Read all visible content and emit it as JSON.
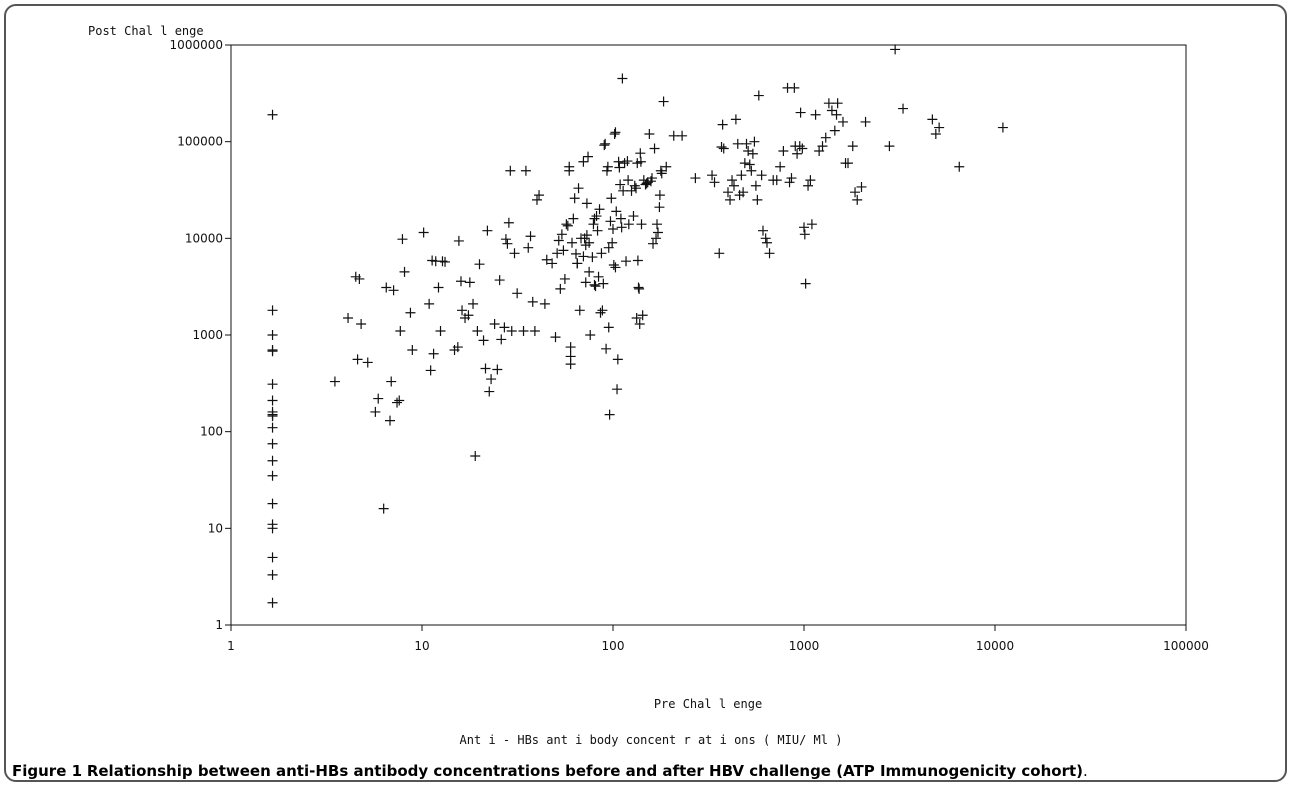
{
  "caption": {
    "label": "Figure 1",
    "text": "Relationship between anti-HBs antibody concentrations before and after HBV challenge (ATP Immunogenicity cohort).",
    "text_display": "Relationship between anti-HBs antibody concentrations before and after HBV challenge (ATP Immunogenicity cohort)"
  },
  "chart_data": {
    "type": "scatter",
    "title": "",
    "ylabel": "Post Challenge",
    "ylabel_display": "Post Chal l enge",
    "xlabel": "Pre Challenge",
    "xlabel_display": "Pre Chal l enge",
    "footnote": "Anti-HBs antibody concentrations (MIU/Ml)",
    "footnote_display": "Ant i - HBs ant i body concent r at i ons ( MIU/ Ml )",
    "x_scale": "log",
    "y_scale": "log",
    "xlim": [
      1,
      100000
    ],
    "ylim": [
      1,
      1000000
    ],
    "x_ticks": [
      "1",
      "10",
      "100",
      "1000",
      "10000",
      "100000"
    ],
    "y_ticks": [
      "1",
      "10",
      "100",
      "1000",
      "10000",
      "100000",
      "1000000"
    ],
    "marker": "plus",
    "grid": false,
    "legend": "none",
    "points": [
      [
        1.65,
        190000
      ],
      [
        1.65,
        1800
      ],
      [
        1.65,
        1000
      ],
      [
        1.65,
        700
      ],
      [
        1.65,
        680
      ],
      [
        1.65,
        310
      ],
      [
        1.65,
        210
      ],
      [
        1.65,
        160
      ],
      [
        1.65,
        150
      ],
      [
        1.65,
        145
      ],
      [
        1.65,
        110
      ],
      [
        1.65,
        75
      ],
      [
        1.65,
        50
      ],
      [
        1.65,
        35
      ],
      [
        1.65,
        18
      ],
      [
        1.65,
        11
      ],
      [
        1.65,
        10
      ],
      [
        1.65,
        5
      ],
      [
        1.65,
        3.3
      ],
      [
        1.65,
        1.7
      ],
      [
        3.5,
        330
      ],
      [
        4.1,
        1500
      ],
      [
        4.5,
        4000
      ],
      [
        4.7,
        3800
      ],
      [
        4.6,
        560
      ],
      [
        4.8,
        1300
      ],
      [
        5.2,
        520
      ],
      [
        5.7,
        160
      ],
      [
        5.9,
        220
      ],
      [
        6.3,
        16
      ],
      [
        6.5,
        3100
      ],
      [
        6.8,
        130
      ],
      [
        6.9,
        330
      ],
      [
        7.1,
        2900
      ],
      [
        7.4,
        200
      ],
      [
        7.6,
        210
      ],
      [
        7.7,
        1100
      ],
      [
        7.9,
        9800
      ],
      [
        8.1,
        4500
      ],
      [
        8.7,
        1700
      ],
      [
        8.9,
        700
      ],
      [
        10.2,
        11500
      ],
      [
        10.9,
        2100
      ],
      [
        11.1,
        430
      ],
      [
        11.3,
        5900
      ],
      [
        11.5,
        640
      ],
      [
        11.8,
        5800
      ],
      [
        12.2,
        3100
      ],
      [
        12.5,
        1100
      ],
      [
        12.8,
        5800
      ],
      [
        13.2,
        5700
      ],
      [
        14.8,
        700
      ],
      [
        15.4,
        750
      ],
      [
        15.6,
        9400
      ],
      [
        16,
        3600
      ],
      [
        16.2,
        1800
      ],
      [
        16.8,
        1500
      ],
      [
        17.5,
        1600
      ],
      [
        17.8,
        3500
      ],
      [
        18.5,
        2100
      ],
      [
        19,
        56
      ],
      [
        19.5,
        1100
      ],
      [
        20,
        5400
      ],
      [
        21,
        880
      ],
      [
        21.5,
        450
      ],
      [
        22,
        12000
      ],
      [
        22.5,
        260
      ],
      [
        23,
        350
      ],
      [
        24,
        1300
      ],
      [
        24.8,
        440
      ],
      [
        25.5,
        3700
      ],
      [
        26,
        900
      ],
      [
        27,
        1200
      ],
      [
        27.5,
        9800
      ],
      [
        28,
        8800
      ],
      [
        28.5,
        14500
      ],
      [
        29,
        50000
      ],
      [
        29.5,
        1100
      ],
      [
        30.5,
        7000
      ],
      [
        31.5,
        2700
      ],
      [
        34,
        1100
      ],
      [
        35,
        50000
      ],
      [
        36,
        8000
      ],
      [
        37,
        10500
      ],
      [
        38,
        2200
      ],
      [
        39,
        1100
      ],
      [
        40,
        25000
      ],
      [
        41,
        28000
      ],
      [
        44,
        2100
      ],
      [
        45,
        6000
      ],
      [
        48,
        5500
      ],
      [
        50,
        950
      ],
      [
        51,
        7000
      ],
      [
        52,
        9500
      ],
      [
        53,
        3000
      ],
      [
        54,
        11000
      ],
      [
        55,
        7500
      ],
      [
        56,
        3800
      ],
      [
        57,
        14000
      ],
      [
        58,
        13500
      ],
      [
        59,
        50000
      ],
      [
        59,
        55000
      ],
      [
        60,
        500
      ],
      [
        60,
        600
      ],
      [
        60,
        750
      ],
      [
        61,
        9000
      ],
      [
        62,
        16000
      ],
      [
        63,
        26000
      ],
      [
        64,
        6900
      ],
      [
        65,
        5500
      ],
      [
        65,
        5500
      ],
      [
        66,
        33000
      ],
      [
        67,
        1800
      ],
      [
        68,
        10000
      ],
      [
        70,
        6500
      ],
      [
        70,
        62000
      ],
      [
        71,
        10000
      ],
      [
        72,
        3500
      ],
      [
        72,
        8500
      ],
      [
        73,
        10800
      ],
      [
        73,
        23000
      ],
      [
        74,
        70000
      ],
      [
        75,
        4500
      ],
      [
        75,
        9000
      ],
      [
        76,
        1000
      ],
      [
        78,
        6400
      ],
      [
        79,
        14000
      ],
      [
        80,
        16000
      ],
      [
        80,
        3300
      ],
      [
        81,
        3200
      ],
      [
        82,
        17000
      ],
      [
        83,
        12000
      ],
      [
        84,
        4000
      ],
      [
        85,
        20000
      ],
      [
        86,
        1700
      ],
      [
        87,
        7000
      ],
      [
        88,
        1800
      ],
      [
        89,
        3400
      ],
      [
        90,
        92000
      ],
      [
        91,
        95000
      ],
      [
        92,
        720
      ],
      [
        93,
        50000
      ],
      [
        94,
        55000
      ],
      [
        95,
        8000
      ],
      [
        95,
        1200
      ],
      [
        96,
        150
      ],
      [
        97,
        15000
      ],
      [
        98,
        26000
      ],
      [
        99,
        9000
      ],
      [
        100,
        12500
      ],
      [
        101,
        5300
      ],
      [
        102,
        120000
      ],
      [
        103,
        125000
      ],
      [
        103,
        5000
      ],
      [
        104,
        19000
      ],
      [
        105,
        275
      ],
      [
        106,
        560
      ],
      [
        107,
        62000
      ],
      [
        108,
        54000
      ],
      [
        109,
        36000
      ],
      [
        110,
        16000
      ],
      [
        111,
        13000
      ],
      [
        112,
        450000
      ],
      [
        113,
        31000
      ],
      [
        115,
        60000
      ],
      [
        117,
        5800
      ],
      [
        119,
        63000
      ],
      [
        120,
        40000
      ],
      [
        121,
        14000
      ],
      [
        125,
        31000
      ],
      [
        128,
        17000
      ],
      [
        130,
        35000
      ],
      [
        132,
        33000
      ],
      [
        133,
        1500
      ],
      [
        134,
        60000
      ],
      [
        135,
        5900
      ],
      [
        136,
        3100
      ],
      [
        137,
        3000
      ],
      [
        138,
        1300
      ],
      [
        139,
        76000
      ],
      [
        140,
        62000
      ],
      [
        141,
        14000
      ],
      [
        143,
        1600
      ],
      [
        145,
        40000
      ],
      [
        148,
        36000
      ],
      [
        150,
        37000
      ],
      [
        152,
        38000
      ],
      [
        155,
        120000
      ],
      [
        158,
        39000
      ],
      [
        160,
        42000
      ],
      [
        162,
        8800
      ],
      [
        165,
        85000
      ],
      [
        168,
        10000
      ],
      [
        170,
        14000
      ],
      [
        172,
        11500
      ],
      [
        175,
        21000
      ],
      [
        176,
        28000
      ],
      [
        178,
        50000
      ],
      [
        180,
        47000
      ],
      [
        184,
        260000
      ],
      [
        190,
        55000
      ],
      [
        208,
        115000
      ],
      [
        230,
        115000
      ],
      [
        270,
        42000
      ],
      [
        330,
        45000
      ],
      [
        340,
        38000
      ],
      [
        360,
        7000
      ],
      [
        370,
        88000
      ],
      [
        375,
        150000
      ],
      [
        380,
        85000
      ],
      [
        400,
        30000
      ],
      [
        410,
        25000
      ],
      [
        420,
        40000
      ],
      [
        430,
        35000
      ],
      [
        440,
        170000
      ],
      [
        450,
        95000
      ],
      [
        460,
        28000
      ],
      [
        470,
        45000
      ],
      [
        480,
        30000
      ],
      [
        490,
        60000
      ],
      [
        500,
        95000
      ],
      [
        510,
        80000
      ],
      [
        520,
        58000
      ],
      [
        530,
        50000
      ],
      [
        540,
        75000
      ],
      [
        550,
        100000
      ],
      [
        560,
        35000
      ],
      [
        570,
        25000
      ],
      [
        580,
        300000
      ],
      [
        600,
        45000
      ],
      [
        610,
        12000
      ],
      [
        630,
        10000
      ],
      [
        640,
        9000
      ],
      [
        660,
        7000
      ],
      [
        690,
        40000
      ],
      [
        720,
        40000
      ],
      [
        750,
        55000
      ],
      [
        780,
        80000
      ],
      [
        820,
        360000
      ],
      [
        840,
        38000
      ],
      [
        860,
        42000
      ],
      [
        890,
        360000
      ],
      [
        900,
        90000
      ],
      [
        920,
        75000
      ],
      [
        950,
        90000
      ],
      [
        960,
        200000
      ],
      [
        980,
        85000
      ],
      [
        1000,
        13000
      ],
      [
        1010,
        11000
      ],
      [
        1020,
        3400
      ],
      [
        1050,
        35000
      ],
      [
        1080,
        40000
      ],
      [
        1100,
        14000
      ],
      [
        1150,
        190000
      ],
      [
        1200,
        80000
      ],
      [
        1250,
        90000
      ],
      [
        1300,
        110000
      ],
      [
        1350,
        250000
      ],
      [
        1400,
        210000
      ],
      [
        1450,
        130000
      ],
      [
        1480,
        190000
      ],
      [
        1500,
        250000
      ],
      [
        1600,
        160000
      ],
      [
        1650,
        60000
      ],
      [
        1700,
        60000
      ],
      [
        1800,
        90000
      ],
      [
        1850,
        30000
      ],
      [
        1900,
        25000
      ],
      [
        2000,
        34000
      ],
      [
        2100,
        160000
      ],
      [
        2800,
        90000
      ],
      [
        3000,
        900000
      ],
      [
        3300,
        220000
      ],
      [
        4700,
        170000
      ],
      [
        4900,
        120000
      ],
      [
        5100,
        140000
      ],
      [
        6500,
        55000
      ],
      [
        11000,
        140000
      ]
    ]
  }
}
